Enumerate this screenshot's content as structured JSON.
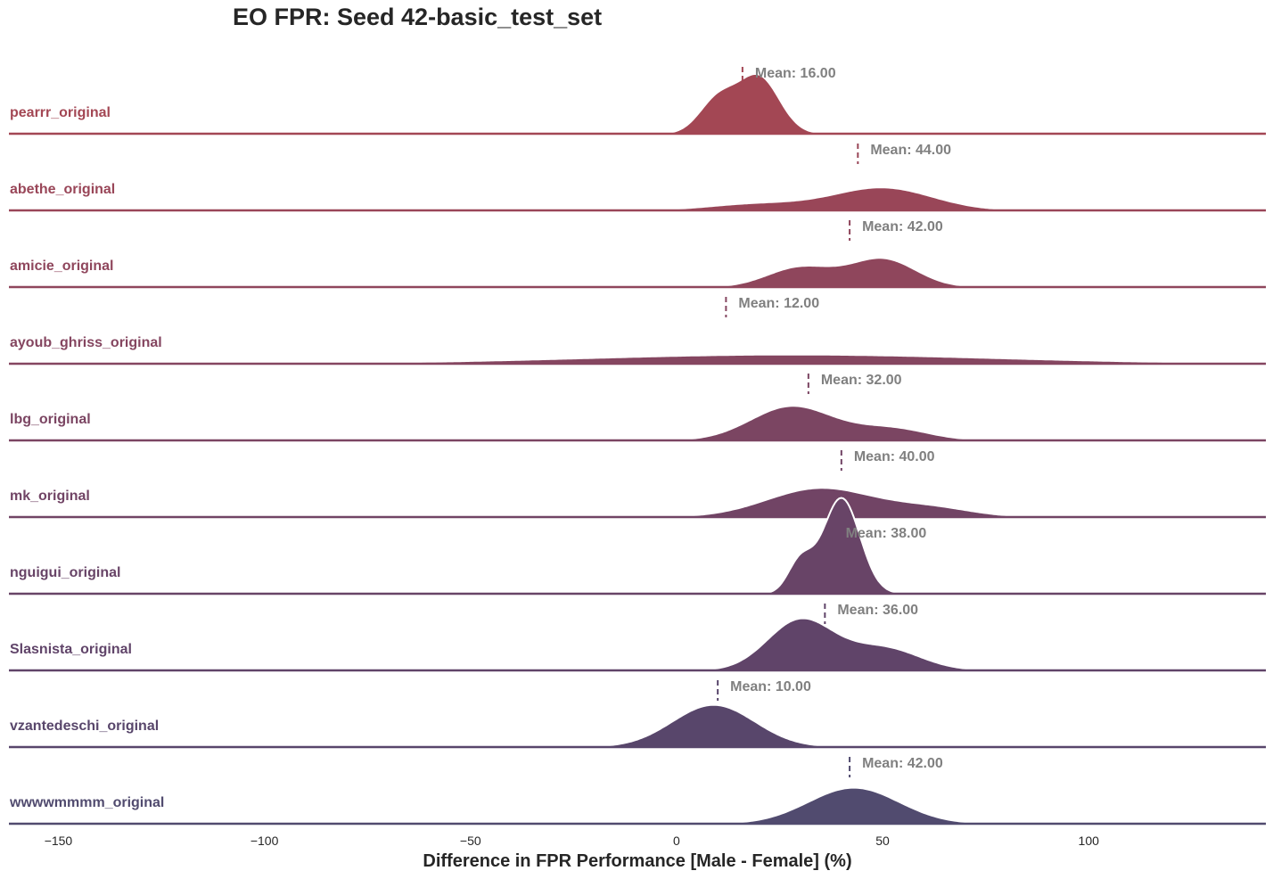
{
  "chart_data": {
    "type": "ridgeline",
    "title": "EO FPR: Seed 42-basic_test_set",
    "xlabel": "Difference in FPR Performance [Male - Female] (%)",
    "xlim": [
      -162,
      143
    ],
    "xticks": [
      -150,
      -100,
      -50,
      0,
      50,
      100
    ],
    "xtick_labels": [
      "−150",
      "−100",
      "−50",
      "0",
      "50",
      "100"
    ],
    "mean_prefix": "Mean: ",
    "series": [
      {
        "name": "pearrr_original",
        "mean": 16.0,
        "mean_label": "Mean: 16.00",
        "color": "#a34754",
        "peak": 0.78,
        "components": [
          [
            10,
            4.5,
            0.6
          ],
          [
            20,
            5,
            1.0
          ]
        ]
      },
      {
        "name": "abethe_original",
        "mean": 44.0,
        "mean_label": "Mean: 44.00",
        "color": "#994658",
        "peak": 0.3,
        "components": [
          [
            20,
            12,
            0.25
          ],
          [
            50,
            12,
            0.85
          ]
        ]
      },
      {
        "name": "amicie_original",
        "mean": 42.0,
        "mean_label": "Mean: 42.00",
        "color": "#8f465c",
        "peak": 0.38,
        "components": [
          [
            30,
            8,
            0.7
          ],
          [
            50,
            8,
            1.0
          ]
        ]
      },
      {
        "name": "ayoub_ghriss_original",
        "mean": 12.0,
        "mean_label": "Mean: 12.00",
        "color": "#854660",
        "peak": 0.12,
        "components": [
          [
            28,
            50,
            1.0
          ]
        ]
      },
      {
        "name": "lbg_original",
        "mean": 32.0,
        "mean_label": "Mean: 32.00",
        "color": "#7b4562",
        "peak": 0.45,
        "components": [
          [
            28,
            10,
            1.0
          ],
          [
            52,
            9,
            0.35
          ]
        ]
      },
      {
        "name": "mk_original",
        "mean": 40.0,
        "mean_label": "Mean: 40.00",
        "color": "#714465",
        "peak": 0.38,
        "components": [
          [
            35,
            13,
            1.0
          ],
          [
            62,
            10,
            0.3
          ]
        ]
      },
      {
        "name": "nguigui_original",
        "mean": 38.0,
        "mean_label": "Mean: 38.00",
        "color": "#684467",
        "peak": 1.25,
        "components": [
          [
            30,
            3,
            0.33
          ],
          [
            40,
            4.5,
            1.0
          ]
        ]
      },
      {
        "name": "Slasnista_original",
        "mean": 36.0,
        "mean_label": "Mean: 36.00",
        "color": "#604469",
        "peak": 0.68,
        "components": [
          [
            30,
            8,
            1.0
          ],
          [
            50,
            9,
            0.45
          ]
        ]
      },
      {
        "name": "vzantedeschi_original",
        "mean": 10.0,
        "mean_label": "Mean: 10.00",
        "color": "#58466b",
        "peak": 0.55,
        "components": [
          [
            9,
            10,
            1.0
          ]
        ]
      },
      {
        "name": "wwwwmmmm_original",
        "mean": 42.0,
        "mean_label": "Mean: 42.00",
        "color": "#514b6f",
        "peak": 0.47,
        "components": [
          [
            43,
            11,
            1.0
          ]
        ]
      }
    ]
  }
}
